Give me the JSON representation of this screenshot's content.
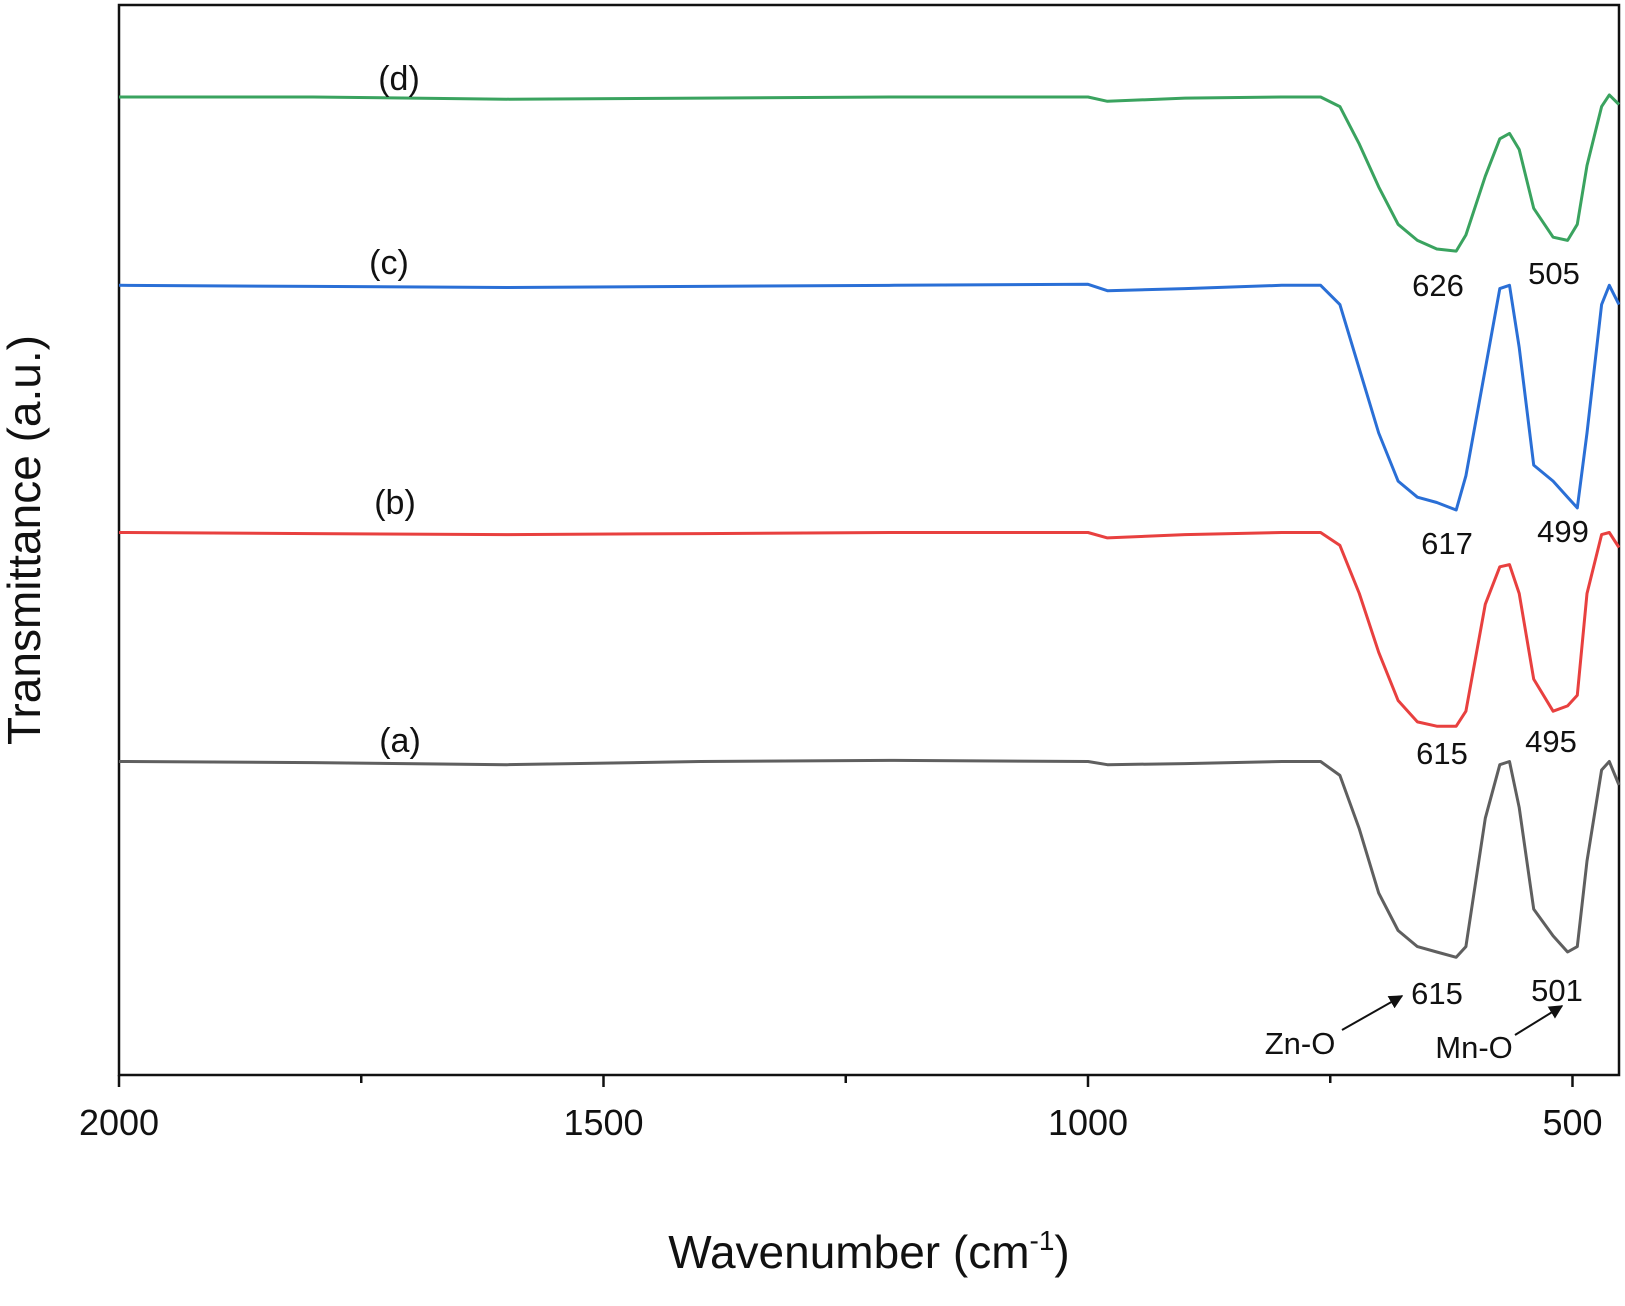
{
  "chart_data": {
    "type": "line",
    "xlabel": "Wavenumber (cm",
    "xlabel_superscript": "-1",
    "xlabel_suffix": ")",
    "ylabel": "Transmittance (a.u.)",
    "xlim": [
      2000,
      452
    ],
    "ylim": [
      0,
      100
    ],
    "xticks": [
      2000,
      1500,
      1000,
      500
    ],
    "xminor_ticks": [
      1750,
      1250,
      750
    ],
    "x": [
      2000,
      1800,
      1600,
      1400,
      1200,
      1000,
      980,
      900,
      800,
      760,
      740,
      720,
      700,
      680,
      660,
      640,
      620,
      610,
      590,
      575,
      565,
      555,
      540,
      520,
      505,
      495,
      485,
      470,
      462,
      452
    ],
    "series": [
      {
        "name": "(a)",
        "color": "#5f5f5f",
        "values": [
          29.3,
          29.2,
          29.0,
          29.3,
          29.4,
          29.3,
          29.0,
          29.1,
          29.3,
          29.3,
          28,
          23,
          17,
          13.5,
          12,
          11.5,
          11,
          12,
          24,
          29,
          29.3,
          25,
          15.5,
          13,
          11.5,
          12,
          20,
          28.5,
          29.3,
          27.1
        ]
      },
      {
        "name": "(b)",
        "color": "#e8403f",
        "values": [
          50.7,
          50.6,
          50.5,
          50.6,
          50.7,
          50.7,
          50.2,
          50.5,
          50.7,
          50.7,
          49.5,
          45,
          39.5,
          35,
          33,
          32.6,
          32.6,
          34,
          44,
          47.5,
          47.7,
          45,
          37,
          34,
          34.5,
          35.5,
          45,
          50.5,
          50.7,
          49.3
        ]
      },
      {
        "name": "(c)",
        "color": "#2a6fd6",
        "values": [
          73.8,
          73.7,
          73.6,
          73.7,
          73.8,
          73.9,
          73.3,
          73.5,
          73.8,
          73.8,
          72,
          66,
          60,
          55.5,
          54,
          53.5,
          52.8,
          56,
          66,
          73.5,
          73.8,
          68,
          57,
          55.5,
          54,
          53,
          60,
          72,
          73.8,
          72
        ]
      },
      {
        "name": "(d)",
        "color": "#3aa35f",
        "values": [
          91.4,
          91.4,
          91.2,
          91.3,
          91.4,
          91.4,
          91.0,
          91.3,
          91.4,
          91.4,
          90.5,
          87,
          83,
          79.5,
          78,
          77.2,
          77,
          78.5,
          84,
          87.5,
          88,
          86.5,
          81,
          78.3,
          78,
          79.5,
          85,
          90.5,
          91.6,
          90.7
        ]
      }
    ],
    "annotations": [
      "626",
      "505",
      "617",
      "499",
      "615",
      "495",
      "615",
      "501",
      "Zn-O",
      "Mn-O"
    ]
  }
}
